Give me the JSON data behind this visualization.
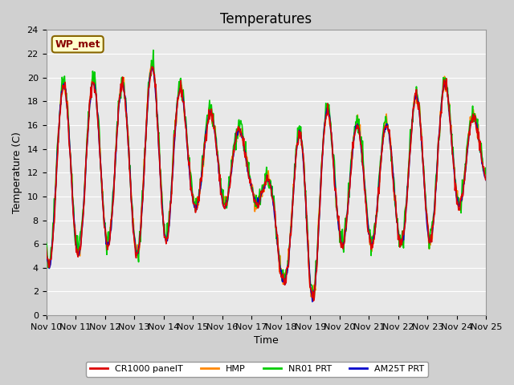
{
  "title": "Temperatures",
  "xlabel": "Time",
  "ylabel": "Temperature (C)",
  "ylim": [
    0,
    24
  ],
  "yticks": [
    0,
    2,
    4,
    6,
    8,
    10,
    12,
    14,
    16,
    18,
    20,
    22,
    24
  ],
  "x_labels": [
    "Nov 10",
    "Nov 11",
    "Nov 12",
    "Nov 13",
    "Nov 14",
    "Nov 15",
    "Nov 16",
    "Nov 17",
    "Nov 18",
    "Nov 19",
    "Nov 20",
    "Nov 21",
    "Nov 22",
    "Nov 23",
    "Nov 24",
    "Nov 25"
  ],
  "colors": {
    "CR1000": "#dd0000",
    "HMP": "#ff8800",
    "NR01": "#00cc00",
    "AM25T": "#0000cc"
  },
  "legend_labels": [
    "CR1000 panelT",
    "HMP",
    "NR01 PRT",
    "AM25T PRT"
  ],
  "bg_color": "#e8e8e8",
  "plot_bg": "#e8e8e8",
  "annotation_text": "WP_met",
  "annotation_bg": "#ffffcc",
  "annotation_border": "#886600"
}
